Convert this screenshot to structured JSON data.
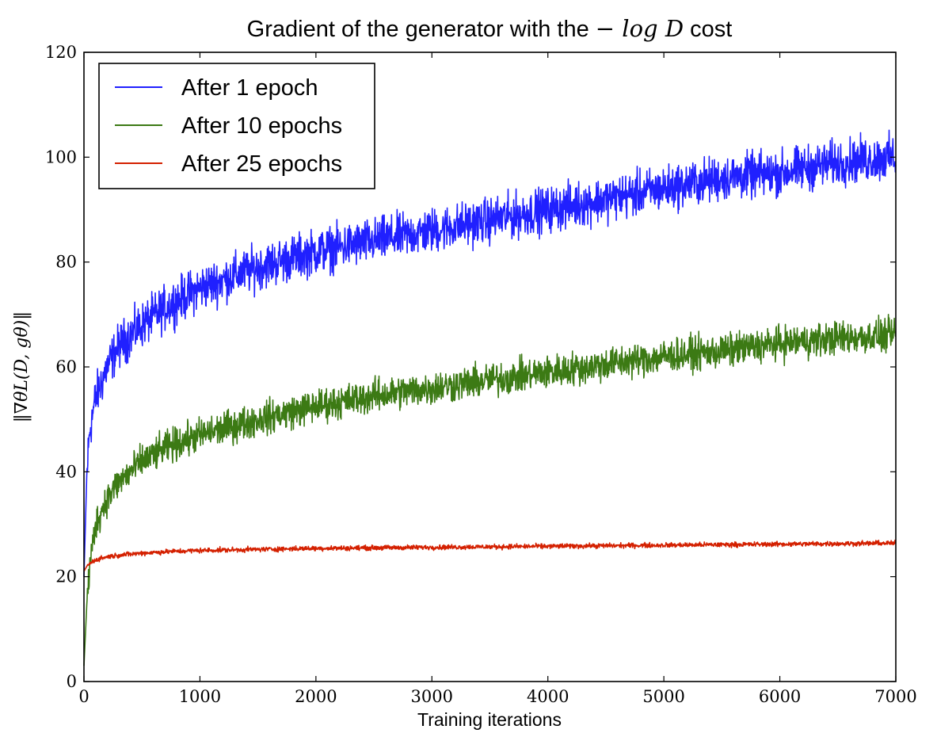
{
  "chart_data": {
    "type": "line",
    "title": {
      "prefix": "Gradient of the generator with the",
      "math": "− log D",
      "suffix": "cost"
    },
    "xlabel": "Training iterations",
    "ylabel": "‖∇θL(D, gθ)‖",
    "xlim": [
      0,
      7000
    ],
    "ylim": [
      0,
      120
    ],
    "x_ticks": [
      0,
      1000,
      2000,
      3000,
      4000,
      5000,
      6000,
      7000
    ],
    "y_ticks": [
      0,
      20,
      40,
      60,
      80,
      100,
      120
    ],
    "grid": false,
    "legend_position": "top-left",
    "x": [
      0,
      25,
      50,
      100,
      200,
      300,
      500,
      750,
      1000,
      1500,
      2000,
      2500,
      3000,
      3500,
      4000,
      4500,
      5000,
      5500,
      6000,
      6500,
      7000
    ],
    "series": [
      {
        "name": "After 1 epoch",
        "color": "#2020ff",
        "noise": 3.2,
        "values": [
          20,
          40,
          48,
          54,
          60,
          64,
          68,
          72,
          75,
          79,
          82,
          84,
          86,
          88,
          90,
          92,
          94,
          96,
          97,
          99,
          100
        ]
      },
      {
        "name": "After 10 epochs",
        "color": "#3c7a14",
        "noise": 2.4,
        "values": [
          3,
          15,
          22,
          30,
          35,
          38,
          42,
          45,
          47,
          50,
          52.5,
          54.5,
          56,
          57.5,
          59,
          60.5,
          62,
          63,
          64.5,
          65.5,
          66
        ]
      },
      {
        "name": "After 25 epochs",
        "color": "#d42000",
        "noise": 0.35,
        "values": [
          21,
          22,
          22.5,
          23.2,
          23.8,
          24.1,
          24.5,
          24.8,
          25,
          25.2,
          25.4,
          25.5,
          25.6,
          25.7,
          25.8,
          25.9,
          26,
          26.1,
          26.2,
          26.3,
          26.4
        ]
      }
    ]
  }
}
